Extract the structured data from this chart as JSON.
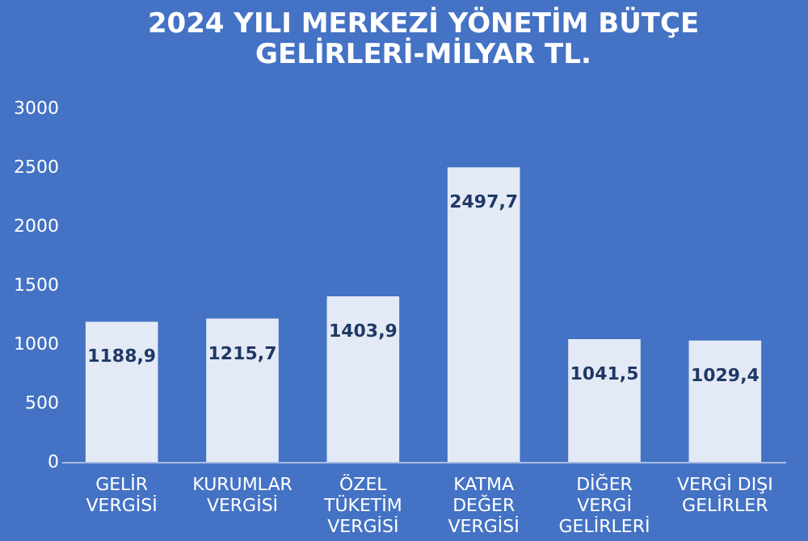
{
  "chart_data": {
    "type": "bar",
    "title": [
      "2024 YILI MERKEZİ YÖNETİM BÜTÇE",
      "GELİRLERİ-MİLYAR TL."
    ],
    "categories": [
      "GELİR\nVERGİSİ",
      "KURUMLAR\nVERGİSİ",
      "ÖZEL\nTÜKETİM\nVERGİSİ",
      "KATMA\nDEĞER\nVERGİSİ",
      "DİĞER\nVERGİ\nGELİRLERİ",
      "VERGİ DIŞI\nGELİRLER"
    ],
    "values": [
      1188.9,
      1215.7,
      1403.9,
      2497.7,
      1041.5,
      1029.4
    ],
    "value_labels": [
      "1188,9",
      "1215,7",
      "1403,9",
      "2497,7",
      "1041,5",
      "1029,4"
    ],
    "color": "#ffffff",
    "ylim": [
      0,
      3000
    ],
    "yticks": [
      0,
      500,
      1000,
      1500,
      2000,
      2500,
      3000
    ],
    "grid": false
  }
}
